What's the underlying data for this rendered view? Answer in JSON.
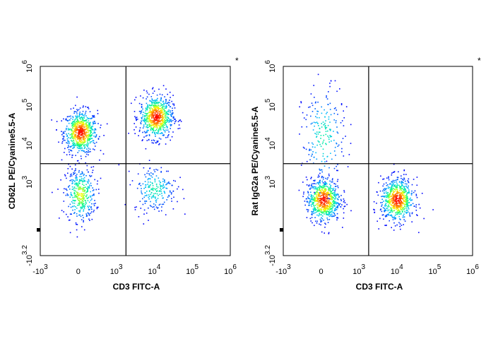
{
  "chart_data": [
    {
      "type": "scatter",
      "title": "",
      "xlabel": "CD3 FITC-A",
      "ylabel": "CD62L PE/Cyanine5.5-A",
      "corner_mark": "*",
      "x_scale": "biexponential",
      "y_scale": "biexponential",
      "x_ticks": [
        {
          "base": "-10",
          "exp": "3",
          "value": -1000
        },
        {
          "base": "0",
          "exp": "",
          "value": 0
        },
        {
          "base": "10",
          "exp": "3",
          "value": 1000
        },
        {
          "base": "10",
          "exp": "4",
          "value": 10000
        },
        {
          "base": "10",
          "exp": "5",
          "value": 100000
        },
        {
          "base": "10",
          "exp": "6",
          "value": 1000000
        }
      ],
      "y_ticks": [
        {
          "base": "-10",
          "exp": "3.2",
          "value": -1585
        },
        {
          "base": "10",
          "exp": "3",
          "value": 1000
        },
        {
          "base": "10",
          "exp": "4",
          "value": 10000
        },
        {
          "base": "10",
          "exp": "5",
          "value": 100000
        },
        {
          "base": "10",
          "exp": "6",
          "value": 1000000
        }
      ],
      "gates": {
        "x": 1800,
        "y": 3000
      },
      "populations": [
        {
          "name_hint": "CD3- CD62L high",
          "x_center": 50,
          "y_center": 20000,
          "density": "high"
        },
        {
          "name_hint": "CD3- CD62L low",
          "x_center": 50,
          "y_center": 700,
          "density": "medium"
        },
        {
          "name_hint": "CD3+ CD62L high",
          "x_center": 11000,
          "y_center": 50000,
          "density": "high"
        },
        {
          "name_hint": "CD3+ CD62L low",
          "x_center": 10000,
          "y_center": 900,
          "density": "low"
        }
      ],
      "colormap": [
        "#0000ff",
        "#00bfff",
        "#00ff80",
        "#ffff00",
        "#ff8000",
        "#ff0000"
      ]
    },
    {
      "type": "scatter",
      "title": "",
      "xlabel": "CD3 FITC-A",
      "ylabel": "Rat IgG2a PE/Cyanine5.5-A",
      "corner_mark": "*",
      "x_scale": "biexponential",
      "y_scale": "biexponential",
      "x_ticks": [
        {
          "base": "-10",
          "exp": "3",
          "value": -1000
        },
        {
          "base": "0",
          "exp": "",
          "value": 0
        },
        {
          "base": "10",
          "exp": "3",
          "value": 1000
        },
        {
          "base": "10",
          "exp": "4",
          "value": 10000
        },
        {
          "base": "10",
          "exp": "5",
          "value": 100000
        },
        {
          "base": "10",
          "exp": "6",
          "value": 1000000
        }
      ],
      "y_ticks": [
        {
          "base": "-10",
          "exp": "3.2",
          "value": -1585
        },
        {
          "base": "10",
          "exp": "3",
          "value": 1000
        },
        {
          "base": "10",
          "exp": "4",
          "value": 10000
        },
        {
          "base": "10",
          "exp": "5",
          "value": 100000
        },
        {
          "base": "10",
          "exp": "6",
          "value": 1000000
        }
      ],
      "gates": {
        "x": 1800,
        "y": 3000
      },
      "populations": [
        {
          "name_hint": "CD3- isotype",
          "x_center": 50,
          "y_center": 500,
          "density": "high"
        },
        {
          "name_hint": "CD3+ isotype",
          "x_center": 10000,
          "y_center": 500,
          "density": "high"
        },
        {
          "name_hint": "CD3- sparse tail",
          "x_center": 50,
          "y_center": 15000,
          "density": "low"
        }
      ],
      "colormap": [
        "#0000ff",
        "#00bfff",
        "#00ff80",
        "#ffff00",
        "#ff8000",
        "#ff0000"
      ]
    }
  ]
}
